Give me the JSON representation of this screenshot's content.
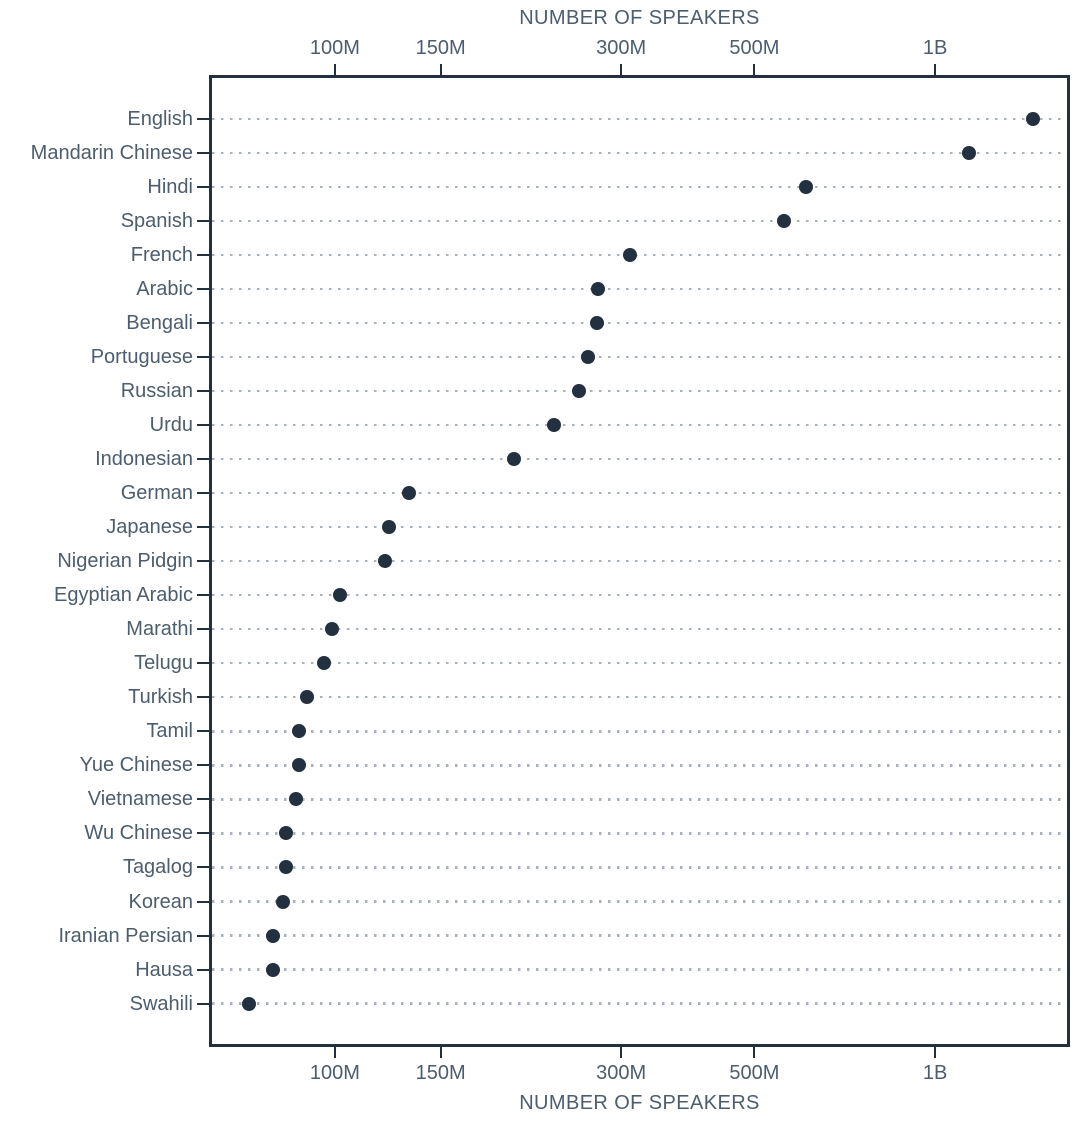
{
  "chart_data": {
    "type": "scatter",
    "variant": "horizontal-dot-plot",
    "axis_title_top": "NUMBER OF SPEAKERS",
    "axis_title_bottom": "NUMBER OF SPEAKERS",
    "x_scale": "log",
    "x_unit": "speakers",
    "x_domain_millions": [
      61.7,
      1678
    ],
    "x_ticks": [
      {
        "value_millions": 100,
        "label": "100M"
      },
      {
        "value_millions": 150,
        "label": "150M"
      },
      {
        "value_millions": 300,
        "label": "300M"
      },
      {
        "value_millions": 500,
        "label": "500M"
      },
      {
        "value_millions": 1000,
        "label": "1B"
      }
    ],
    "grid": {
      "horizontal_row_lines": true,
      "style": "dotted"
    },
    "legend": "none",
    "categories": [
      "English",
      "Mandarin Chinese",
      "Hindi",
      "Spanish",
      "French",
      "Arabic",
      "Bengali",
      "Portuguese",
      "Russian",
      "Urdu",
      "Indonesian",
      "German",
      "Japanese",
      "Nigerian Pidgin",
      "Egyptian Arabic",
      "Marathi",
      "Telugu",
      "Turkish",
      "Tamil",
      "Yue Chinese",
      "Vietnamese",
      "Wu Chinese",
      "Tagalog",
      "Korean",
      "Iranian Persian",
      "Hausa",
      "Swahili"
    ],
    "values_millions": [
      1456,
      1138,
      610,
      559,
      310,
      274,
      273,
      264,
      255,
      232,
      199,
      133,
      123,
      121,
      102,
      99,
      96,
      90,
      87,
      87,
      86,
      83,
      83,
      82,
      79,
      79,
      72
    ]
  },
  "colors": {
    "background": "#ffffff",
    "dot": "#22303f",
    "plot_border": "#22303f",
    "tick_mark": "#22303f",
    "grid_dot": "#a8b2bf",
    "text": "#4c5d6e"
  }
}
